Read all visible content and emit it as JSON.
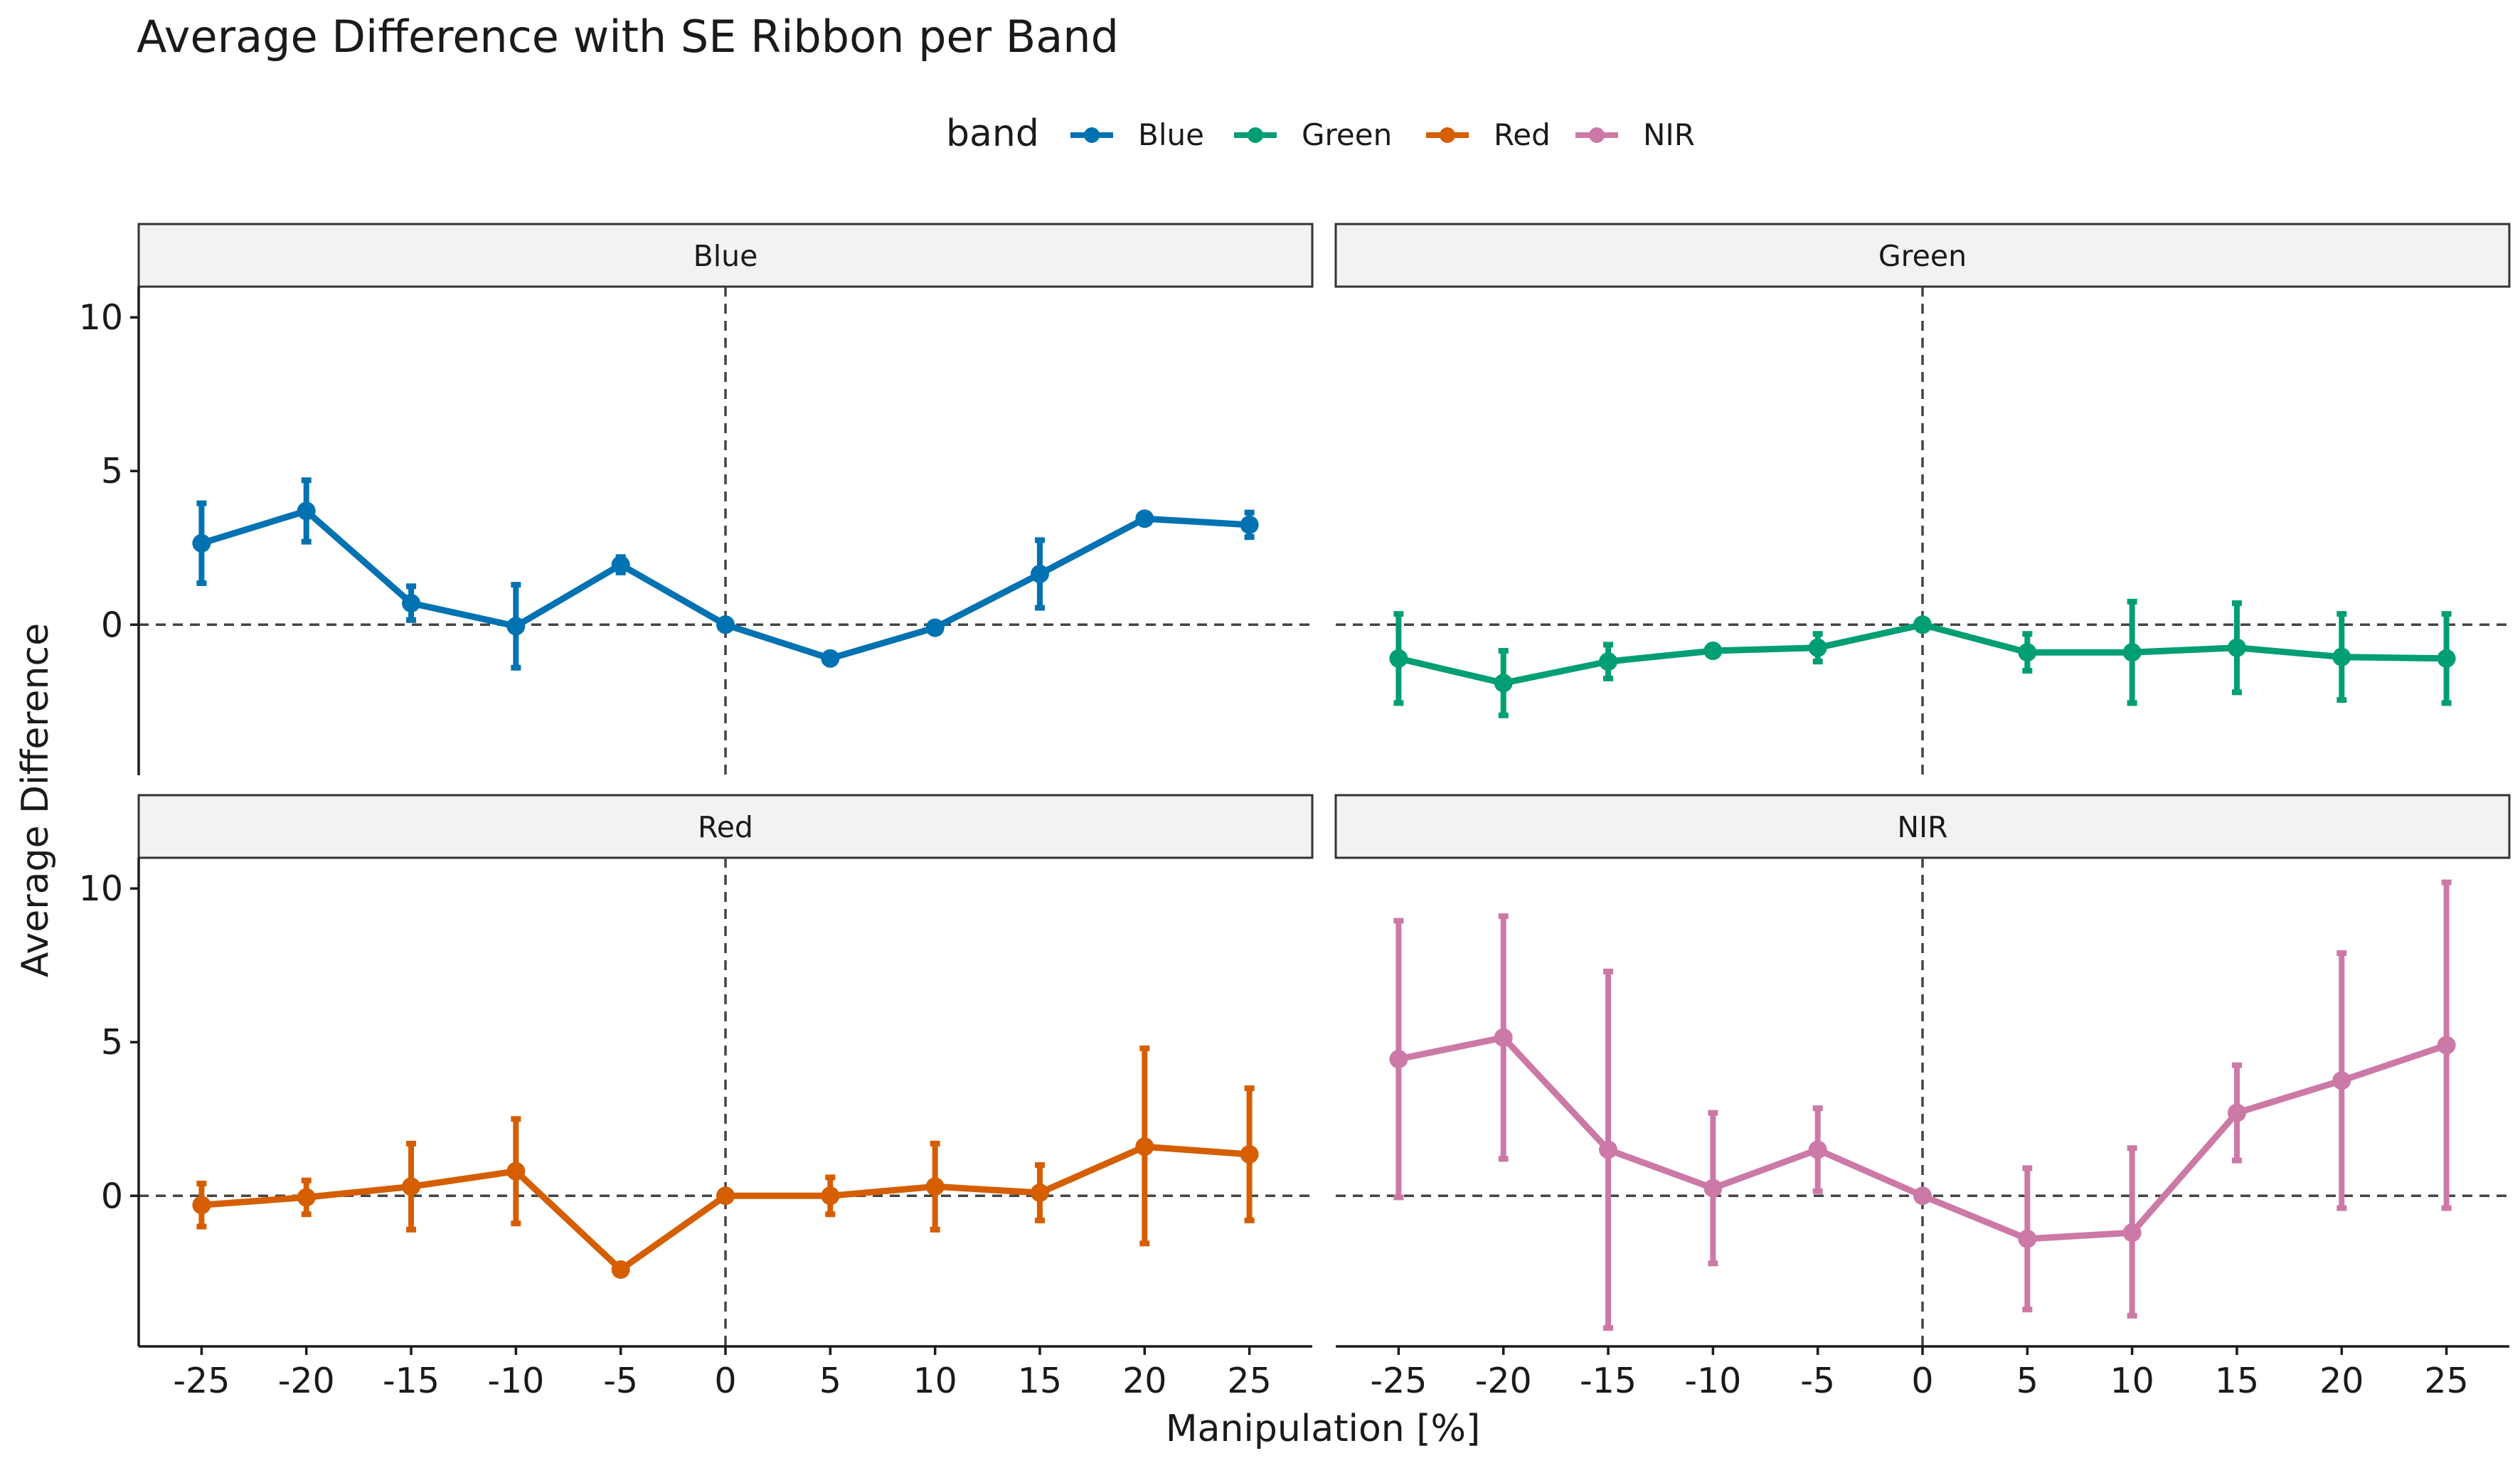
{
  "chart_data": {
    "type": "line",
    "title": "Average Difference with SE Ribbon per Band",
    "xlabel": "Manipulation [%]",
    "ylabel": "Average Difference",
    "legend_title": "band",
    "legend_position": "top",
    "x": [
      -25,
      -20,
      -15,
      -10,
      -5,
      0,
      5,
      10,
      15,
      20,
      25
    ],
    "x_ticks": [
      "-25",
      "-20",
      "-15",
      "-10",
      "-5",
      "0",
      "5",
      "10",
      "15",
      "20",
      "25"
    ],
    "y_ticks": [
      "0",
      "5",
      "10"
    ],
    "xlim": [
      -28,
      28
    ],
    "ylim": [
      -4.9,
      11
    ],
    "grid": false,
    "reference_lines": {
      "x": 0,
      "y": 0,
      "style": "dashed"
    },
    "series": [
      {
        "name": "Blue",
        "color": "#0072B2",
        "values": [
          2.65,
          3.7,
          0.7,
          -0.05,
          1.95,
          0.0,
          -1.1,
          -0.1,
          1.65,
          3.45,
          3.25
        ],
        "lower": [
          1.35,
          2.7,
          0.15,
          -1.4,
          1.7,
          0.0,
          -1.1,
          -0.1,
          0.55,
          3.45,
          2.85
        ],
        "upper": [
          3.95,
          4.7,
          1.25,
          1.3,
          2.2,
          0.0,
          -1.1,
          -0.1,
          2.75,
          3.45,
          3.65
        ]
      },
      {
        "name": "Green",
        "color": "#009E73",
        "values": [
          -1.1,
          -1.9,
          -1.2,
          -0.85,
          -0.75,
          0.0,
          -0.9,
          -0.9,
          -0.75,
          -1.05,
          -1.1
        ],
        "lower": [
          -2.55,
          -2.95,
          -1.75,
          -0.85,
          -1.2,
          0.0,
          -1.5,
          -2.55,
          -2.2,
          -2.45,
          -2.55
        ],
        "upper": [
          0.35,
          -0.85,
          -0.65,
          -0.85,
          -0.3,
          0.0,
          -0.3,
          0.75,
          0.7,
          0.35,
          0.35
        ]
      },
      {
        "name": "Red",
        "color": "#D55E00",
        "values": [
          -0.3,
          -0.05,
          0.3,
          0.8,
          -2.4,
          0.0,
          0.0,
          0.3,
          0.1,
          1.6,
          1.35
        ],
        "lower": [
          -1.0,
          -0.6,
          -1.1,
          -0.9,
          -2.55,
          0.0,
          -0.6,
          -1.1,
          -0.8,
          -1.55,
          -0.8
        ],
        "upper": [
          0.4,
          0.5,
          1.7,
          2.5,
          -2.25,
          0.0,
          0.6,
          1.7,
          1.0,
          4.8,
          3.5
        ]
      },
      {
        "name": "NIR",
        "color": "#CC79A7",
        "values": [
          4.45,
          5.15,
          1.5,
          0.25,
          1.5,
          0.0,
          -1.4,
          -1.2,
          2.7,
          3.75,
          4.9
        ],
        "lower": [
          -0.05,
          1.2,
          -4.3,
          -2.2,
          0.15,
          0.0,
          -3.7,
          -3.9,
          1.15,
          -0.4,
          -0.4
        ],
        "upper": [
          8.95,
          9.1,
          7.3,
          2.7,
          2.85,
          0.0,
          0.9,
          1.55,
          4.25,
          7.9,
          10.2
        ]
      }
    ]
  }
}
